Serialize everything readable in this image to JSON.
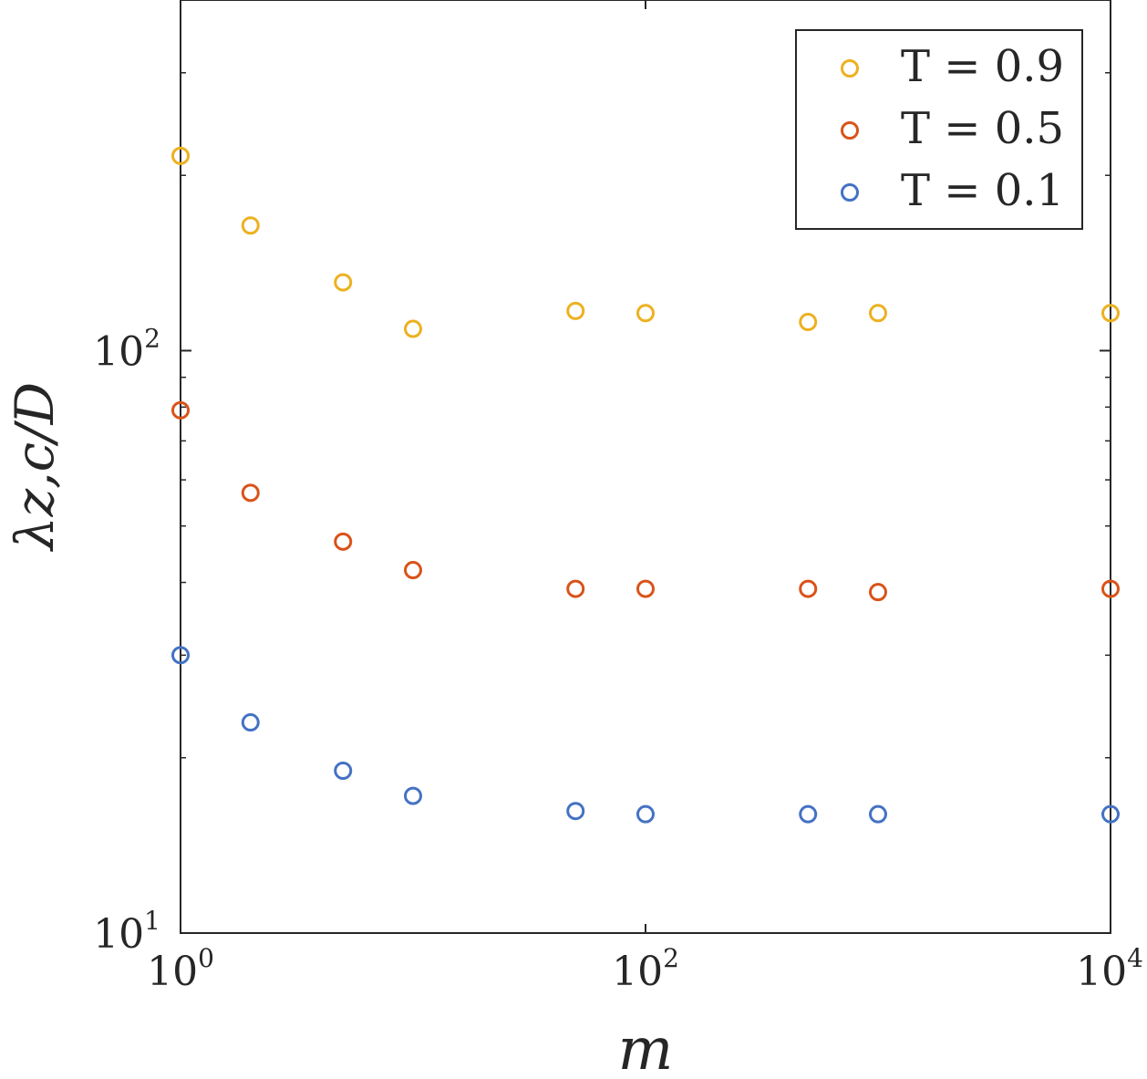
{
  "chart_data": {
    "type": "scatter",
    "title": "",
    "xlabel": "m",
    "ylabel": "λz,c/D",
    "xscale": "log",
    "yscale": "log",
    "xlim": [
      1,
      10000
    ],
    "ylim": [
      10,
      400
    ],
    "grid": false,
    "legend_position": "top-right",
    "x_ticks": [
      {
        "base": "10",
        "exp": "0",
        "value": 1
      },
      {
        "base": "10",
        "exp": "2",
        "value": 100
      },
      {
        "base": "10",
        "exp": "4",
        "value": 10000
      }
    ],
    "y_ticks": [
      {
        "base": "10",
        "exp": "1",
        "value": 10
      },
      {
        "base": "10",
        "exp": "2",
        "value": 100
      }
    ],
    "series": [
      {
        "name": "T = 0.9",
        "color": "#EDB120",
        "x": [
          1,
          2,
          5,
          10,
          50,
          100,
          500,
          1000,
          10000
        ],
        "y": [
          216,
          164,
          131,
          109,
          117,
          116,
          112,
          116,
          116
        ]
      },
      {
        "name": "T = 0.5",
        "color": "#D95319",
        "x": [
          1,
          2,
          5,
          10,
          50,
          100,
          500,
          1000,
          10000
        ],
        "y": [
          79,
          57,
          47,
          42,
          39,
          39,
          39,
          38.5,
          39
        ]
      },
      {
        "name": "T = 0.1",
        "color": "#4472C4",
        "x": [
          1,
          2,
          5,
          10,
          50,
          100,
          500,
          1000,
          10000
        ],
        "y": [
          30,
          23,
          19,
          17.2,
          16.2,
          16,
          16,
          16,
          16
        ]
      }
    ]
  }
}
